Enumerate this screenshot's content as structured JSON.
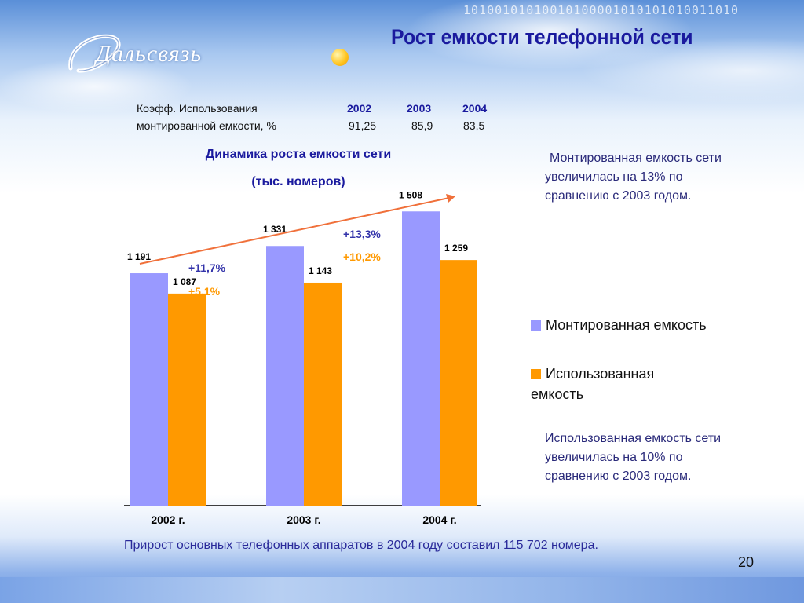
{
  "header": {
    "title": "Рост емкости телефонной сети",
    "logo_text": "Дальсвязь",
    "binary_strip": "10100101010010100001010101010011010"
  },
  "ratio_table": {
    "label_line1": "Коэфф. Использования",
    "label_line2": "монтированной емкости, %",
    "years": [
      "2002",
      "2003",
      "2004"
    ],
    "values": [
      "91,25",
      "85,9",
      "83,5"
    ]
  },
  "chart_heading": {
    "line1": "Динамика роста емкости сети",
    "line2": "(тыс. номеров)"
  },
  "notes": {
    "mounted": "Монтированная емкость сети увеличилась на 13% по сравнению с 2003 годом.",
    "used": "Использованная емкость сети увеличилась на 10% по сравнению с 2003 годом."
  },
  "legend": {
    "mounted": "Монтированная емкость",
    "used": "Использованная емкость"
  },
  "footer": {
    "text": "Прирост основных телефонных аппаратов в 2004 году составил 115 702 номера.",
    "page_number": "20"
  },
  "colors": {
    "mounted": "#9999ff",
    "used": "#ff9900",
    "title": "#1a1a9e",
    "trend_arrow": "#f0703a",
    "growth_mounted": "#3333aa",
    "growth_used": "#ff9900"
  },
  "chart_data": {
    "type": "bar",
    "categories": [
      "2002 г.",
      "2003 г.",
      "2004 г."
    ],
    "series": [
      {
        "name": "Монтированная емкость",
        "values": [
          1191,
          1331,
          1508
        ],
        "labels": [
          "1 191",
          "1 331",
          "1 508"
        ]
      },
      {
        "name": "Использованная емкость",
        "values": [
          1087,
          1143,
          1259
        ],
        "labels": [
          "1 087",
          "1 143",
          "1 259"
        ]
      }
    ],
    "growth_annotations": [
      {
        "between": [
          "2002 г.",
          "2003 г."
        ],
        "mounted": "+11,7%",
        "used": "+5,1%"
      },
      {
        "between": [
          "2003 г.",
          "2004 г."
        ],
        "mounted": "+13,3%",
        "used": "+10,2%"
      }
    ],
    "ylim": [
      0,
      1600
    ],
    "grid": false,
    "legend_position": "right",
    "title": "Динамика роста емкости сети",
    "subtitle": "(тыс. номеров)"
  }
}
